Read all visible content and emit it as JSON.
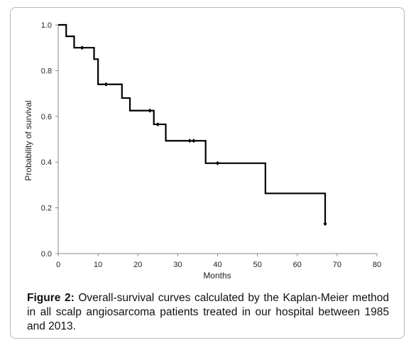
{
  "chart_data": {
    "type": "line",
    "subtype": "step",
    "xlabel": "Months",
    "ylabel": "Probability of survival",
    "xlim": [
      0,
      80
    ],
    "ylim": [
      0,
      1.0
    ],
    "x_ticks": [
      0,
      10,
      20,
      30,
      40,
      50,
      60,
      70,
      80
    ],
    "y_ticks": [
      "0.0",
      "0.2",
      "0.4",
      "0.6",
      "0.8",
      "1.0"
    ],
    "grid": false,
    "series": [
      {
        "color": "#000000",
        "steps": [
          {
            "x": 0,
            "y": 1.0
          },
          {
            "x": 2,
            "y": 0.95
          },
          {
            "x": 4,
            "y": 0.9
          },
          {
            "x": 9,
            "y": 0.85
          },
          {
            "x": 10,
            "y": 0.74
          },
          {
            "x": 16,
            "y": 0.68
          },
          {
            "x": 18,
            "y": 0.625
          },
          {
            "x": 24,
            "y": 0.565
          },
          {
            "x": 27,
            "y": 0.493
          },
          {
            "x": 37,
            "y": 0.395
          },
          {
            "x": 52,
            "y": 0.263
          },
          {
            "x": 67,
            "y": 0.263
          },
          {
            "x": 67,
            "y": 0.13
          }
        ],
        "censored": [
          {
            "x": 6,
            "y": 0.9
          },
          {
            "x": 12,
            "y": 0.74
          },
          {
            "x": 23,
            "y": 0.625
          },
          {
            "x": 25,
            "y": 0.565
          },
          {
            "x": 33,
            "y": 0.493
          },
          {
            "x": 34,
            "y": 0.493
          },
          {
            "x": 40,
            "y": 0.395
          },
          {
            "x": 67,
            "y": 0.13
          }
        ]
      }
    ]
  },
  "caption": {
    "label": "Figure 2:",
    "text": " Overall-survival curves calculated by the Kaplan-Meier method in all scalp angiosarcoma patients treated in our hospital between 1985 and 2013."
  }
}
